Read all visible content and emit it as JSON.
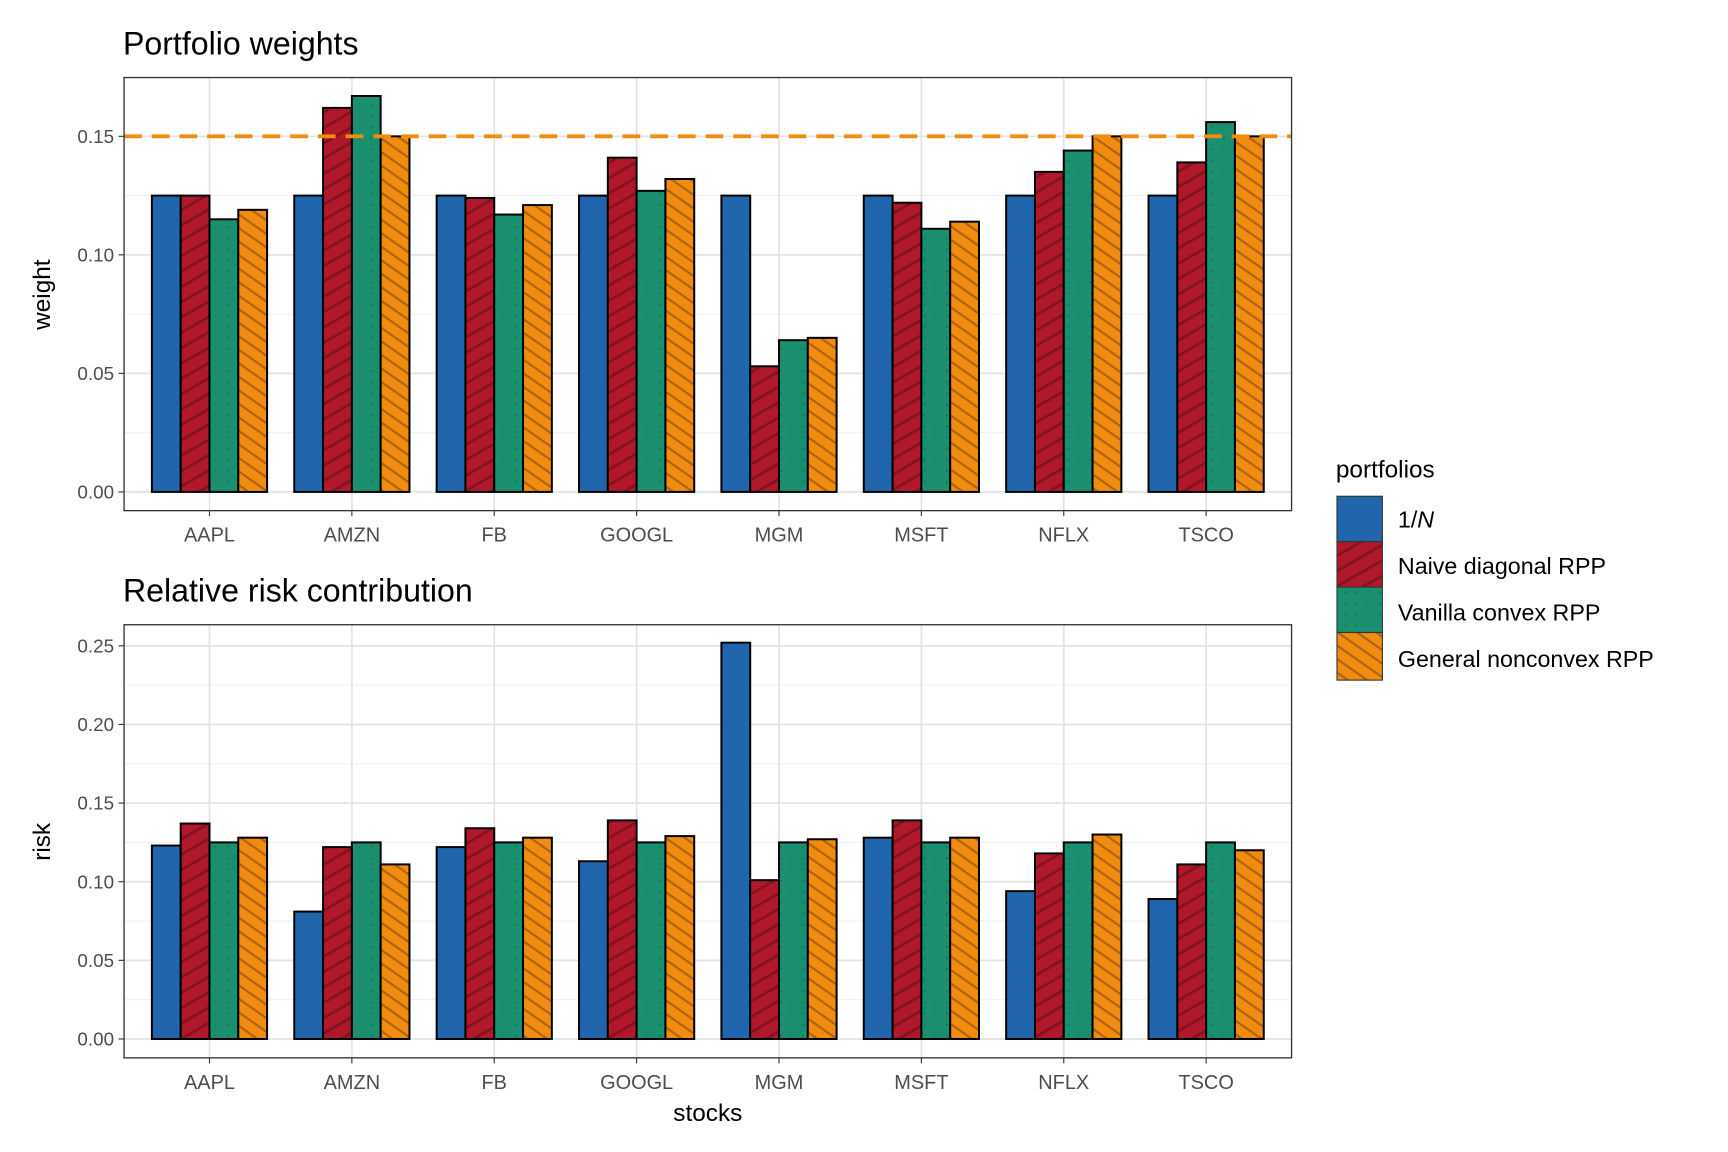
{
  "chart_data": [
    {
      "type": "bar",
      "title": "Portfolio weights",
      "xlabel": "",
      "ylabel": "weight",
      "categories": [
        "AAPL",
        "AMZN",
        "FB",
        "GOOGL",
        "MGM",
        "MSFT",
        "NFLX",
        "TSCO"
      ],
      "ylim": [
        -0.0079,
        0.1748
      ],
      "yticks": [
        0.0,
        0.05,
        0.1,
        0.15
      ],
      "ytick_labels": [
        "0.00",
        "0.05",
        "0.10",
        "0.15"
      ],
      "grid": true,
      "hline": {
        "value": 0.15,
        "color": "#F28C0F",
        "style": "dashed"
      },
      "series": [
        {
          "name": "1/N",
          "values": [
            0.125,
            0.125,
            0.125,
            0.125,
            0.125,
            0.125,
            0.125,
            0.125
          ]
        },
        {
          "name": "Naive diagonal RPP",
          "values": [
            0.125,
            0.162,
            0.124,
            0.141,
            0.053,
            0.122,
            0.135,
            0.139
          ]
        },
        {
          "name": "Vanilla convex RPP",
          "values": [
            0.115,
            0.167,
            0.117,
            0.127,
            0.064,
            0.111,
            0.144,
            0.156
          ]
        },
        {
          "name": "General nonconvex RPP",
          "values": [
            0.119,
            0.15,
            0.121,
            0.132,
            0.065,
            0.114,
            0.15,
            0.15
          ]
        }
      ]
    },
    {
      "type": "bar",
      "title": "Relative risk contribution",
      "xlabel": "stocks",
      "ylabel": "risk",
      "categories": [
        "AAPL",
        "AMZN",
        "FB",
        "GOOGL",
        "MGM",
        "MSFT",
        "NFLX",
        "TSCO"
      ],
      "ylim": [
        -0.012,
        0.2634
      ],
      "yticks": [
        0.0,
        0.05,
        0.1,
        0.15,
        0.2,
        0.25
      ],
      "ytick_labels": [
        "0.00",
        "0.05",
        "0.10",
        "0.15",
        "0.20",
        "0.25"
      ],
      "grid": true,
      "series": [
        {
          "name": "1/N",
          "values": [
            0.123,
            0.081,
            0.122,
            0.113,
            0.252,
            0.128,
            0.094,
            0.089
          ]
        },
        {
          "name": "Naive diagonal RPP",
          "values": [
            0.137,
            0.122,
            0.134,
            0.139,
            0.101,
            0.139,
            0.118,
            0.111
          ]
        },
        {
          "name": "Vanilla convex RPP",
          "values": [
            0.125,
            0.125,
            0.125,
            0.125,
            0.125,
            0.125,
            0.125,
            0.125
          ]
        },
        {
          "name": "General nonconvex RPP",
          "values": [
            0.128,
            0.111,
            0.128,
            0.129,
            0.127,
            0.128,
            0.13,
            0.12
          ]
        }
      ]
    }
  ],
  "legend": {
    "title": "portfolios",
    "placement": "right",
    "items": [
      {
        "label_prefix": "1/",
        "label_italic": "N",
        "color": "#2166AC",
        "pattern": "none"
      },
      {
        "label": "Naive diagonal RPP",
        "color": "#B2182B",
        "pattern": "stripe"
      },
      {
        "label": "Vanilla convex RPP",
        "color": "#1B9070",
        "pattern": "dots"
      },
      {
        "label": "General nonconvex RPP",
        "color": "#F28C0F",
        "pattern": "crosshatch-stripe"
      }
    ]
  }
}
